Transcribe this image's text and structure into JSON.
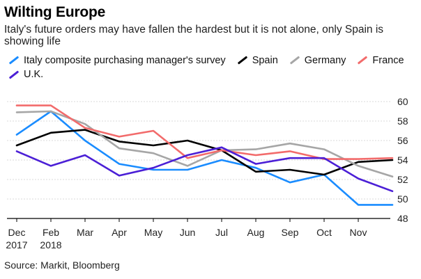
{
  "title": "Wilting Europe",
  "subtitle": "Italy's future orders may have fallen the hardest but it is not alone, only Spain is showing life",
  "source": "Source: Markit, Bloomberg",
  "chart_data": {
    "type": "line",
    "x_ticks": [
      {
        "label": "Dec",
        "sub": "2017"
      },
      {
        "label": "Feb",
        "sub": "2018"
      },
      {
        "label": "Mar",
        "sub": ""
      },
      {
        "label": "Apr",
        "sub": ""
      },
      {
        "label": "May",
        "sub": ""
      },
      {
        "label": "Jun",
        "sub": ""
      },
      {
        "label": "Jul",
        "sub": ""
      },
      {
        "label": "Aug",
        "sub": ""
      },
      {
        "label": "Sep",
        "sub": ""
      },
      {
        "label": "Oct",
        "sub": ""
      },
      {
        "label": "Nov",
        "sub": ""
      }
    ],
    "y_ticks": [
      48,
      50,
      52,
      54,
      56,
      58,
      60
    ],
    "ylim": [
      48,
      60.5
    ],
    "grid": true,
    "legend_placement": "top",
    "series": [
      {
        "name": "Italy composite purchasing manager's survey",
        "color": "#1a8cff",
        "values": [
          56.6,
          59.0,
          56.0,
          53.6,
          53.0,
          53.0,
          54.0,
          53.2,
          51.7,
          52.5,
          49.4,
          49.4
        ]
      },
      {
        "name": "Spain",
        "color": "#000000",
        "values": [
          55.5,
          56.8,
          57.1,
          55.9,
          55.5,
          56.0,
          55.0,
          52.8,
          53.0,
          52.5,
          53.8,
          54.0
        ]
      },
      {
        "name": "Germany",
        "color": "#a6a6a6",
        "values": [
          58.9,
          59.0,
          57.7,
          55.2,
          54.7,
          53.4,
          55.0,
          55.1,
          55.7,
          55.1,
          53.4,
          52.3
        ]
      },
      {
        "name": "France",
        "color": "#f26b6b",
        "values": [
          59.6,
          59.6,
          57.3,
          56.4,
          57.0,
          54.2,
          55.0,
          54.5,
          54.9,
          54.1,
          54.1,
          54.2
        ]
      },
      {
        "name": "U.K.",
        "color": "#4b1fd6",
        "values": [
          54.9,
          53.4,
          54.5,
          52.4,
          53.2,
          54.5,
          55.3,
          53.6,
          54.2,
          54.2,
          52.1,
          50.8
        ]
      }
    ]
  }
}
